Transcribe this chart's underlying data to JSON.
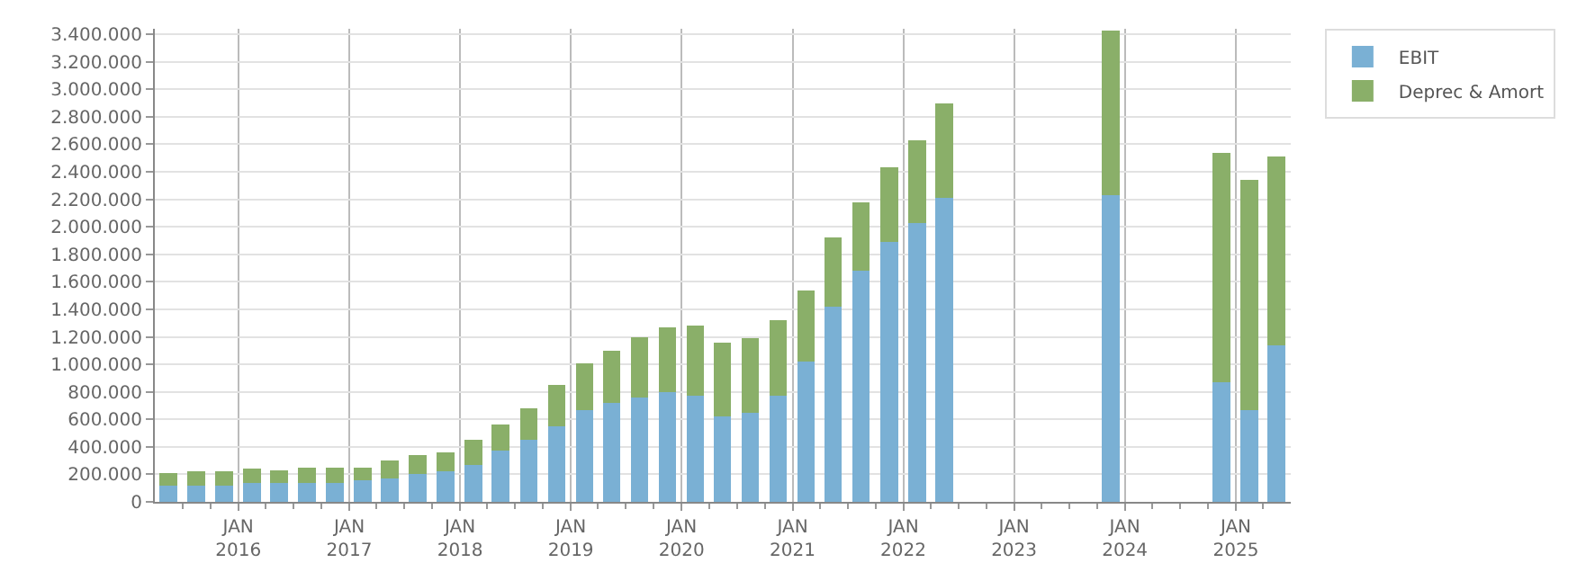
{
  "chart_data": {
    "type": "bar",
    "stacked": true,
    "x": [
      "2015-05-15",
      "2015-08-15",
      "2015-11-15",
      "2016-02-15",
      "2016-05-15",
      "2016-08-15",
      "2016-11-15",
      "2017-02-15",
      "2017-05-15",
      "2017-08-15",
      "2017-11-15",
      "2018-02-15",
      "2018-05-15",
      "2018-08-15",
      "2018-11-15",
      "2019-02-15",
      "2019-05-15",
      "2019-08-15",
      "2019-11-15",
      "2020-02-15",
      "2020-05-15",
      "2020-08-15",
      "2020-11-15",
      "2021-02-15",
      "2021-05-15",
      "2021-08-15",
      "2021-11-15",
      "2022-02-15",
      "2022-05-15",
      "2023-11-15",
      "2024-11-15",
      "2025-02-15",
      "2025-05-15"
    ],
    "series": [
      {
        "name": "EBIT",
        "color": "#7ab0d4",
        "values": [
          120000,
          120000,
          120000,
          140000,
          140000,
          140000,
          140000,
          160000,
          170000,
          200000,
          220000,
          270000,
          370000,
          450000,
          550000,
          670000,
          720000,
          760000,
          800000,
          770000,
          620000,
          650000,
          770000,
          1020000,
          1420000,
          1680000,
          1890000,
          2030000,
          2210000,
          2230000,
          870000,
          670000,
          1140000
        ]
      },
      {
        "name": "Deprec & Amort",
        "color": "#8aaf69",
        "values": [
          90000,
          100000,
          100000,
          100000,
          90000,
          110000,
          110000,
          90000,
          130000,
          140000,
          140000,
          180000,
          190000,
          230000,
          300000,
          340000,
          380000,
          440000,
          470000,
          510000,
          540000,
          540000,
          550000,
          520000,
          500000,
          500000,
          540000,
          600000,
          690000,
          1200000,
          1670000,
          1670000,
          1370000
        ]
      }
    ],
    "xlim": [
      "2015-04-01",
      "2025-07-01"
    ],
    "xticks": [
      {
        "value": "2015-07-01",
        "label": null
      },
      {
        "value": "2015-10-01",
        "label": null
      },
      {
        "value": "2016-01-01",
        "label": "JAN\n2016"
      },
      {
        "value": "2016-04-01",
        "label": null
      },
      {
        "value": "2016-07-01",
        "label": null
      },
      {
        "value": "2016-10-01",
        "label": null
      },
      {
        "value": "2017-01-01",
        "label": "JAN\n2017"
      },
      {
        "value": "2017-04-01",
        "label": null
      },
      {
        "value": "2017-07-01",
        "label": null
      },
      {
        "value": "2017-10-01",
        "label": null
      },
      {
        "value": "2018-01-01",
        "label": "JAN\n2018"
      },
      {
        "value": "2018-04-01",
        "label": null
      },
      {
        "value": "2018-07-01",
        "label": null
      },
      {
        "value": "2018-10-01",
        "label": null
      },
      {
        "value": "2019-01-01",
        "label": "JAN\n2019"
      },
      {
        "value": "2019-04-01",
        "label": null
      },
      {
        "value": "2019-07-01",
        "label": null
      },
      {
        "value": "2019-10-01",
        "label": null
      },
      {
        "value": "2020-01-01",
        "label": "JAN\n2020"
      },
      {
        "value": "2020-04-01",
        "label": null
      },
      {
        "value": "2020-07-01",
        "label": null
      },
      {
        "value": "2020-10-01",
        "label": null
      },
      {
        "value": "2021-01-01",
        "label": "JAN\n2021"
      },
      {
        "value": "2021-04-01",
        "label": null
      },
      {
        "value": "2021-07-01",
        "label": null
      },
      {
        "value": "2021-10-01",
        "label": null
      },
      {
        "value": "2022-01-01",
        "label": "JAN\n2022"
      },
      {
        "value": "2022-04-01",
        "label": null
      },
      {
        "value": "2022-07-01",
        "label": null
      },
      {
        "value": "2022-10-01",
        "label": null
      },
      {
        "value": "2023-01-01",
        "label": "JAN\n2023"
      },
      {
        "value": "2023-04-01",
        "label": null
      },
      {
        "value": "2023-07-01",
        "label": null
      },
      {
        "value": "2023-10-01",
        "label": null
      },
      {
        "value": "2024-01-01",
        "label": "JAN\n2024"
      },
      {
        "value": "2024-04-01",
        "label": null
      },
      {
        "value": "2024-07-01",
        "label": null
      },
      {
        "value": "2024-10-01",
        "label": null
      },
      {
        "value": "2025-01-01",
        "label": "JAN\n2025"
      },
      {
        "value": "2025-04-01",
        "label": null
      }
    ],
    "ylim": [
      0,
      3440000
    ],
    "yticks": [
      0,
      {
        "value": 200000,
        "label": "200.000"
      },
      {
        "value": 400000,
        "label": "400.000"
      },
      {
        "value": 600000,
        "label": "600.000"
      },
      {
        "value": 800000,
        "label": "800.000"
      },
      {
        "value": 1000000,
        "label": "1.000.000"
      },
      {
        "value": 1200000,
        "label": "1.200.000"
      },
      {
        "value": 1400000,
        "label": "1.400.000"
      },
      {
        "value": 1600000,
        "label": "1.600.000"
      },
      {
        "value": 1800000,
        "label": "1.800.000"
      },
      {
        "value": 2000000,
        "label": "2.000.000"
      },
      {
        "value": 2200000,
        "label": "2.200.000"
      },
      {
        "value": 2400000,
        "label": "2.400.000"
      },
      {
        "value": 2600000,
        "label": "2.600.000"
      },
      {
        "value": 2800000,
        "label": "2.800.000"
      },
      {
        "value": 3000000,
        "label": "3.000.000"
      },
      {
        "value": 3200000,
        "label": "3.200.000"
      },
      {
        "value": 3400000,
        "label": "3.400.000"
      }
    ],
    "grid": true,
    "legend": "top right"
  }
}
